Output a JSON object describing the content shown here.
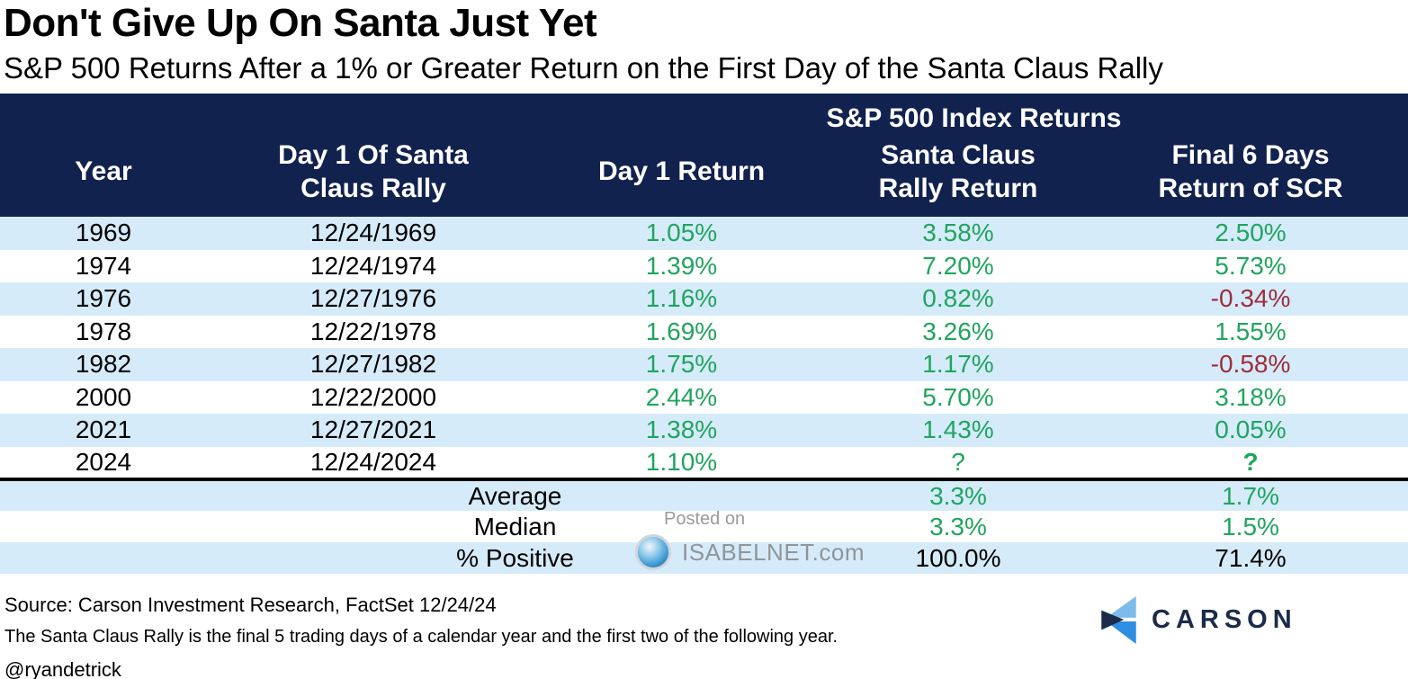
{
  "chart_data": {
    "type": "table",
    "title": "Don't Give Up On Santa Just Yet",
    "subtitle": "S&P 500 Returns After a 1% or Greater Return on the First Day of the Santa Claus Rally",
    "group_header": "S&P 500 Index Returns",
    "columns": [
      "Year",
      "Day 1 Of Santa Claus Rally",
      "Day 1 Return",
      "Santa Claus Rally Return",
      "Final 6 Days Return of SCR"
    ],
    "rows": [
      {
        "year": "1969",
        "date": "12/24/1969",
        "day1": "1.05%",
        "scr": "3.58%",
        "final6": "2.50%"
      },
      {
        "year": "1974",
        "date": "12/24/1974",
        "day1": "1.39%",
        "scr": "7.20%",
        "final6": "5.73%"
      },
      {
        "year": "1976",
        "date": "12/27/1976",
        "day1": "1.16%",
        "scr": "0.82%",
        "final6": "-0.34%"
      },
      {
        "year": "1978",
        "date": "12/22/1978",
        "day1": "1.69%",
        "scr": "3.26%",
        "final6": "1.55%"
      },
      {
        "year": "1982",
        "date": "12/27/1982",
        "day1": "1.75%",
        "scr": "1.17%",
        "final6": "-0.58%"
      },
      {
        "year": "2000",
        "date": "12/22/2000",
        "day1": "2.44%",
        "scr": "5.70%",
        "final6": "3.18%"
      },
      {
        "year": "2021",
        "date": "12/27/2021",
        "day1": "1.38%",
        "scr": "1.43%",
        "final6": "0.05%"
      },
      {
        "year": "2024",
        "date": "12/24/2024",
        "day1": "1.10%",
        "scr": "?",
        "final6": "?",
        "final6_bold": true
      }
    ],
    "summary_rows": [
      {
        "label": "Average",
        "scr": "3.3%",
        "final6": "1.7%",
        "value_color": "green"
      },
      {
        "label": "Median",
        "scr": "3.3%",
        "final6": "1.5%",
        "value_color": "green"
      },
      {
        "label": "% Positive",
        "scr": "100.0%",
        "final6": "71.4%",
        "value_color": "black"
      }
    ]
  },
  "watermark": {
    "posted_on": "Posted on",
    "site": "ISABELNET.com"
  },
  "footer": {
    "source": "Source: Carson Investment Research, FactSet 12/24/24",
    "note": "The Santa Claus Rally is the final 5 trading days of a calendar year and the first two of the following year.",
    "handle": "@ryandetrick",
    "logo_text": "CARSON"
  },
  "colors": {
    "header_bg": "#12224e",
    "row_stripe": "#d6ebfa",
    "positive_green": "#1fa55e",
    "negative_red": "#9e2d3a",
    "logo_navy": "#1b2b4a",
    "logo_light_blue": "#7dbbea",
    "logo_mid_blue": "#2e8fe0"
  }
}
